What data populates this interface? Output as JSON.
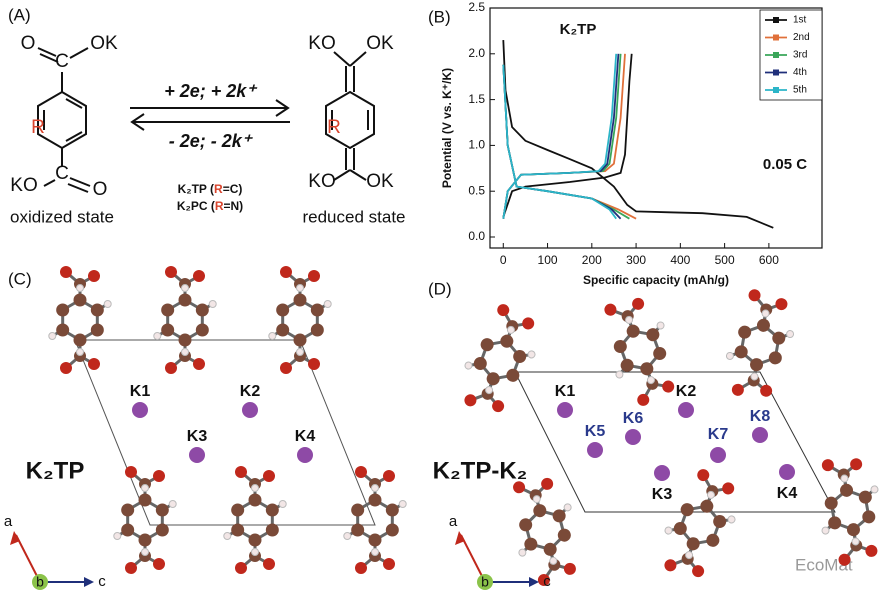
{
  "panel_a": {
    "label": "(A)",
    "left": {
      "o_top": "O",
      "ok_top": "OK",
      "c_top": "C",
      "r": "R",
      "ko_bottom": "KO",
      "c_bottom": "C",
      "o_bottom": "O",
      "state": "oxidized state"
    },
    "right": {
      "ko_top": "KO",
      "ok_top": "OK",
      "r": "R",
      "ko_bottom": "KO",
      "ok_bottom": "OK",
      "state": "reduced state"
    },
    "forward": "+ 2e; + 2k⁺",
    "backward": "- 2e; - 2k⁺",
    "legend": [
      [
        "K₂TP (",
        "R",
        "=C)"
      ],
      [
        "K₂PC (",
        "R",
        "=N)"
      ]
    ]
  },
  "chart_data": {
    "type": "line",
    "label": "(B)",
    "title": "K₂TP",
    "annotation": "0.05 C",
    "x_label": "Specific capacity (mAh/g)",
    "y_label": "Potential (V vs. K⁺/K)",
    "xlim": [
      -30,
      720
    ],
    "ylim": [
      -0.12,
      2.5
    ],
    "xticks": [
      0,
      100,
      200,
      300,
      400,
      500,
      600
    ],
    "yticks": [
      {
        "value": 0,
        "label": "0.0"
      },
      0.5,
      {
        "value": 1,
        "label": "1.0"
      },
      1.5,
      {
        "value": 2,
        "label": "2.0"
      },
      2.5
    ],
    "series": [
      {
        "name": "1st",
        "color": "#111111",
        "x": [
          0,
          5,
          20,
          50,
          100,
          150,
          200,
          250,
          280,
          300,
          375,
          450,
          550,
          610,
          null,
          0,
          20,
          50,
          150,
          230,
          265,
          275,
          280,
          285,
          290
        ],
        "values": [
          2.15,
          1.6,
          1.2,
          1.05,
          0.95,
          0.85,
          0.75,
          0.55,
          0.35,
          0.28,
          0.27,
          0.26,
          0.22,
          0.1,
          null,
          0.22,
          0.5,
          0.55,
          0.6,
          0.65,
          0.7,
          0.9,
          1.3,
          1.7,
          2.0
        ]
      },
      {
        "name": "2nd",
        "color": "#e0703a",
        "x": [
          0,
          10,
          30,
          100,
          200,
          260,
          300,
          null,
          0,
          10,
          40,
          150,
          230,
          250,
          265,
          275
        ],
        "values": [
          1.88,
          1.0,
          0.55,
          0.5,
          0.42,
          0.3,
          0.2,
          null,
          0.2,
          0.5,
          0.68,
          0.7,
          0.72,
          0.8,
          1.3,
          2.0
        ]
      },
      {
        "name": "3rd",
        "color": "#3aa65a",
        "x": [
          0,
          10,
          30,
          100,
          200,
          250,
          285,
          null,
          0,
          10,
          40,
          150,
          225,
          240,
          255,
          265
        ],
        "values": [
          1.88,
          1.0,
          0.55,
          0.5,
          0.42,
          0.3,
          0.2,
          null,
          0.2,
          0.5,
          0.68,
          0.7,
          0.72,
          0.8,
          1.3,
          2.0
        ]
      },
      {
        "name": "4th",
        "color": "#1f2f7a",
        "x": [
          0,
          10,
          30,
          100,
          200,
          245,
          265,
          null,
          0,
          10,
          40,
          150,
          220,
          235,
          250,
          260
        ],
        "values": [
          1.88,
          1.0,
          0.55,
          0.5,
          0.42,
          0.3,
          0.2,
          null,
          0.2,
          0.5,
          0.68,
          0.7,
          0.72,
          0.8,
          1.3,
          2.0
        ]
      },
      {
        "name": "5th",
        "color": "#2bb5c8",
        "x": [
          0,
          10,
          30,
          100,
          200,
          240,
          255,
          null,
          0,
          10,
          40,
          150,
          215,
          230,
          245,
          255
        ],
        "values": [
          1.88,
          1.0,
          0.55,
          0.5,
          0.42,
          0.3,
          0.2,
          null,
          0.2,
          0.5,
          0.68,
          0.7,
          0.72,
          0.8,
          1.3,
          2.0
        ]
      }
    ]
  },
  "panel_c": {
    "label": "(C)",
    "name": "K₂TP",
    "sites": [
      "K1",
      "K2",
      "K3",
      "K4"
    ],
    "axes": [
      "a",
      "b",
      "c"
    ]
  },
  "panel_d": {
    "label": "(D)",
    "name": "K₂TP-K₂",
    "sites": [
      "K1",
      "K2",
      "K3",
      "K4",
      "K5",
      "K6",
      "K7",
      "K8"
    ],
    "axes": [
      "a",
      "b",
      "c"
    ],
    "watermark": "EcoMat"
  }
}
